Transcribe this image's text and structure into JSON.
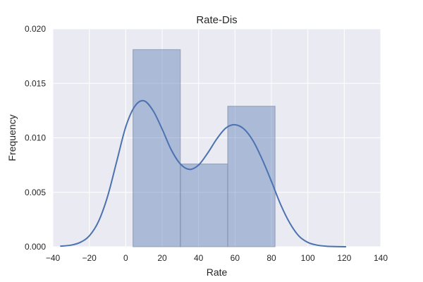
{
  "chart_data": {
    "type": "bar",
    "title": "Rate-Dis",
    "xlabel": "Rate",
    "ylabel": "Frequency",
    "xlim": [
      -40,
      140
    ],
    "ylim": [
      0,
      0.02
    ],
    "grid": true,
    "xticks": [
      -40,
      -20,
      0,
      20,
      40,
      60,
      80,
      100,
      120,
      140
    ],
    "xtick_labels": [
      "−40",
      "−20",
      "0",
      "20",
      "40",
      "60",
      "80",
      "100",
      "120",
      "140"
    ],
    "yticks": [
      0,
      0.005,
      0.01,
      0.015,
      0.02
    ],
    "ytick_labels": [
      "0.000",
      "0.005",
      "0.010",
      "0.015",
      "0.020"
    ],
    "histogram": {
      "bins": [
        {
          "x0": 4,
          "x1": 30,
          "value": 0.0181
        },
        {
          "x0": 30,
          "x1": 56,
          "value": 0.0076
        },
        {
          "x0": 56,
          "x1": 82,
          "value": 0.0129
        }
      ],
      "color": "#4c72b0",
      "opacity": 0.4
    },
    "kde": {
      "color": "#4c72b0",
      "x": [
        -36,
        -30,
        -25,
        -20,
        -15,
        -10,
        -5,
        0,
        5,
        10,
        15,
        20,
        25,
        30,
        35,
        40,
        45,
        50,
        55,
        60,
        65,
        70,
        75,
        80,
        85,
        90,
        95,
        100,
        105,
        110,
        115,
        121
      ],
      "y": [
        5e-05,
        0.00015,
        0.0004,
        0.001,
        0.0023,
        0.0046,
        0.0078,
        0.011,
        0.0129,
        0.0134,
        0.0125,
        0.0108,
        0.0089,
        0.0076,
        0.0071,
        0.0075,
        0.0086,
        0.0099,
        0.0109,
        0.0112,
        0.0108,
        0.0097,
        0.008,
        0.006,
        0.0039,
        0.0022,
        0.001,
        0.0004,
        0.00015,
        5e-05,
        2e-05,
        0.0
      ]
    },
    "colors": {
      "plot_background": "#eaeaf2",
      "grid": "#ffffff",
      "text": "#262626"
    }
  }
}
